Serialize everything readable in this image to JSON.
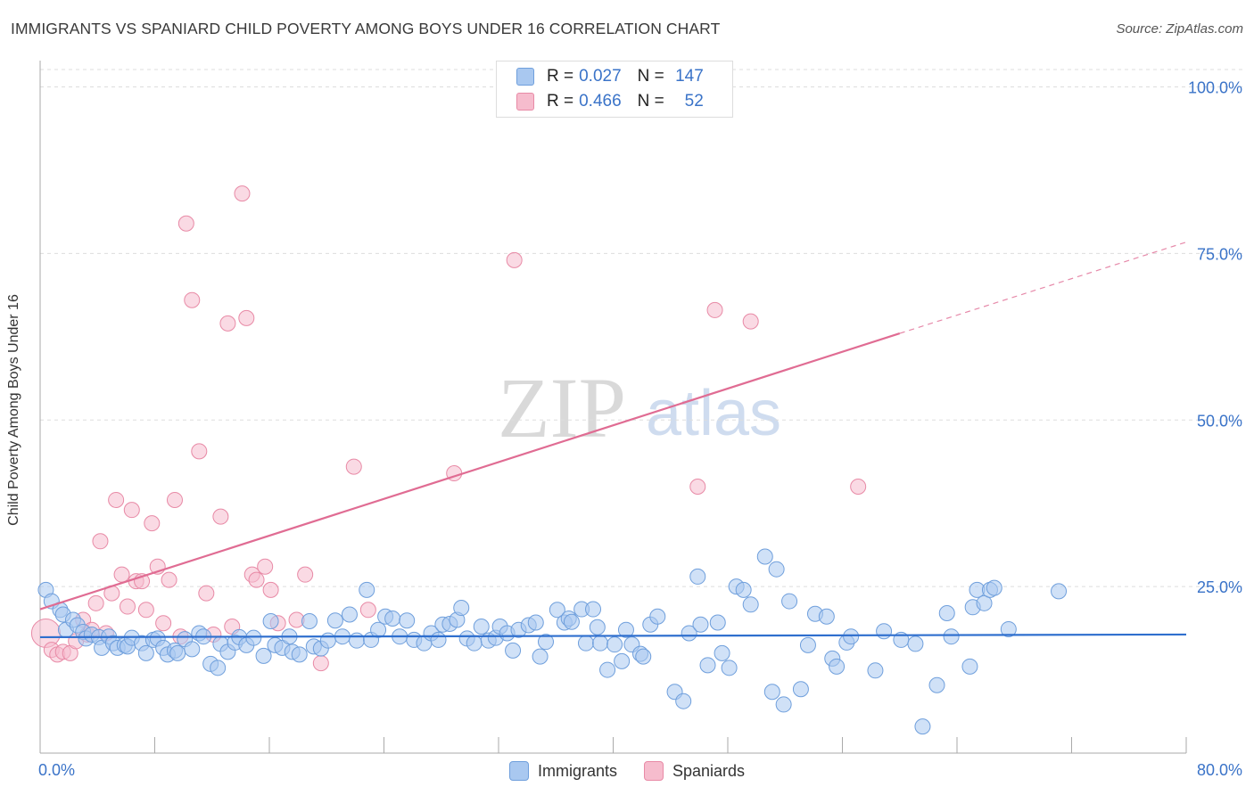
{
  "header": {
    "title": "IMMIGRANTS VS SPANIARD CHILD POVERTY AMONG BOYS UNDER 16 CORRELATION CHART",
    "source": "Source: ZipAtlas.com"
  },
  "watermark": {
    "zip": "ZIP",
    "atlas": "atlas"
  },
  "legend_top": {
    "rows": [
      {
        "r_label": "R = ",
        "r_value": "0.027",
        "n_label": "N = ",
        "n_value": "147"
      },
      {
        "r_label": "R = ",
        "r_value": "0.466",
        "n_label": "N = ",
        "n_value": "52"
      }
    ]
  },
  "legend_bottom": {
    "items": [
      {
        "label": "Immigrants"
      },
      {
        "label": "Spaniards"
      }
    ]
  },
  "colors": {
    "immigrants_fill": "#a9c8f0",
    "immigrants_stroke": "#6f9fdc",
    "immigrants_line": "#2f6fce",
    "spaniards_fill": "#f6bccd",
    "spaniards_stroke": "#e88aa6",
    "spaniards_line": "#e06c93",
    "axis_label": "#3a73c8",
    "grid": "#dddddd"
  },
  "chart_data": {
    "type": "scatter",
    "title": "IMMIGRANTS VS SPANIARD CHILD POVERTY AMONG BOYS UNDER 16 CORRELATION CHART",
    "xlabel": "",
    "ylabel": "Child Poverty Among Boys Under 16",
    "xlim": [
      0,
      80
    ],
    "ylim": [
      0,
      105
    ],
    "x_tick_labels": [
      "0.0%",
      "80.0%"
    ],
    "y_ticks": [
      25,
      50,
      75,
      100
    ],
    "y_tick_labels": [
      "25.0%",
      "50.0%",
      "75.0%",
      "100.0%"
    ],
    "grid": "horizontal dashed",
    "legend_position": "top-center",
    "series": [
      {
        "name": "Immigrants",
        "r": 0.027,
        "n": 147,
        "trend": {
          "x": [
            0,
            80
          ],
          "y": [
            17.4,
            17.8
          ]
        },
        "points": [
          [
            0.4,
            24.5
          ],
          [
            0.8,
            22.8
          ],
          [
            1.4,
            21.5
          ],
          [
            1.6,
            20.8
          ],
          [
            1.8,
            18.5
          ],
          [
            2.3,
            20.0
          ],
          [
            2.6,
            19.2
          ],
          [
            3.0,
            18.2
          ],
          [
            3.2,
            17.2
          ],
          [
            3.6,
            17.8
          ],
          [
            4.1,
            17.4
          ],
          [
            4.3,
            15.8
          ],
          [
            4.8,
            17.5
          ],
          [
            5.1,
            16.5
          ],
          [
            5.4,
            15.8
          ],
          [
            5.9,
            16.2
          ],
          [
            6.1,
            16.0
          ],
          [
            6.4,
            17.3
          ],
          [
            7.1,
            16.5
          ],
          [
            7.4,
            15.0
          ],
          [
            7.9,
            17.0
          ],
          [
            8.2,
            17.2
          ],
          [
            8.6,
            15.8
          ],
          [
            8.9,
            14.8
          ],
          [
            9.4,
            15.4
          ],
          [
            9.6,
            15.0
          ],
          [
            10.1,
            17.1
          ],
          [
            10.6,
            15.6
          ],
          [
            11.1,
            18.0
          ],
          [
            11.4,
            17.5
          ],
          [
            11.9,
            13.4
          ],
          [
            12.4,
            12.8
          ],
          [
            12.6,
            16.4
          ],
          [
            13.1,
            15.2
          ],
          [
            13.6,
            16.6
          ],
          [
            13.9,
            17.4
          ],
          [
            14.4,
            16.2
          ],
          [
            14.9,
            17.3
          ],
          [
            15.6,
            14.6
          ],
          [
            16.1,
            19.8
          ],
          [
            16.4,
            16.2
          ],
          [
            16.9,
            15.8
          ],
          [
            17.4,
            17.5
          ],
          [
            17.6,
            15.2
          ],
          [
            18.1,
            14.8
          ],
          [
            18.8,
            19.8
          ],
          [
            19.1,
            16.0
          ],
          [
            19.6,
            15.7
          ],
          [
            20.1,
            16.9
          ],
          [
            20.6,
            19.9
          ],
          [
            21.1,
            17.5
          ],
          [
            21.6,
            20.8
          ],
          [
            22.1,
            16.9
          ],
          [
            22.8,
            24.5
          ],
          [
            23.1,
            17.0
          ],
          [
            23.6,
            18.5
          ],
          [
            24.1,
            20.5
          ],
          [
            24.6,
            20.2
          ],
          [
            25.1,
            17.5
          ],
          [
            25.6,
            19.9
          ],
          [
            26.1,
            17.0
          ],
          [
            26.8,
            16.5
          ],
          [
            27.3,
            18.0
          ],
          [
            27.8,
            17.0
          ],
          [
            28.1,
            19.3
          ],
          [
            28.6,
            19.4
          ],
          [
            29.1,
            20.0
          ],
          [
            29.4,
            21.8
          ],
          [
            29.8,
            17.2
          ],
          [
            30.3,
            16.5
          ],
          [
            30.8,
            19.0
          ],
          [
            31.3,
            16.9
          ],
          [
            31.8,
            17.3
          ],
          [
            32.1,
            19.0
          ],
          [
            32.6,
            18.0
          ],
          [
            33.0,
            15.4
          ],
          [
            33.4,
            18.5
          ],
          [
            34.1,
            19.2
          ],
          [
            34.6,
            19.6
          ],
          [
            34.9,
            14.5
          ],
          [
            35.3,
            16.7
          ],
          [
            36.1,
            21.5
          ],
          [
            36.6,
            19.6
          ],
          [
            36.9,
            20.2
          ],
          [
            37.1,
            19.7
          ],
          [
            37.8,
            21.6
          ],
          [
            38.1,
            16.5
          ],
          [
            38.6,
            21.6
          ],
          [
            38.9,
            18.9
          ],
          [
            39.1,
            16.5
          ],
          [
            39.6,
            12.5
          ],
          [
            40.1,
            16.3
          ],
          [
            40.6,
            13.8
          ],
          [
            40.9,
            18.5
          ],
          [
            41.3,
            16.3
          ],
          [
            41.9,
            14.9
          ],
          [
            42.1,
            14.5
          ],
          [
            42.6,
            19.3
          ],
          [
            43.1,
            20.5
          ],
          [
            44.3,
            9.2
          ],
          [
            44.9,
            7.8
          ],
          [
            45.3,
            18.0
          ],
          [
            45.9,
            26.5
          ],
          [
            46.1,
            19.3
          ],
          [
            46.6,
            13.2
          ],
          [
            47.3,
            19.6
          ],
          [
            47.6,
            15.0
          ],
          [
            48.1,
            12.8
          ],
          [
            48.6,
            25.0
          ],
          [
            49.1,
            24.5
          ],
          [
            49.6,
            22.3
          ],
          [
            50.6,
            29.5
          ],
          [
            51.1,
            9.2
          ],
          [
            51.4,
            27.6
          ],
          [
            51.9,
            7.3
          ],
          [
            52.3,
            22.8
          ],
          [
            53.1,
            9.6
          ],
          [
            53.6,
            16.2
          ],
          [
            54.1,
            20.9
          ],
          [
            54.9,
            20.5
          ],
          [
            55.3,
            14.2
          ],
          [
            55.6,
            13.0
          ],
          [
            56.3,
            16.6
          ],
          [
            56.6,
            17.5
          ],
          [
            58.3,
            12.4
          ],
          [
            58.9,
            18.3
          ],
          [
            60.1,
            17.0
          ],
          [
            61.1,
            16.4
          ],
          [
            61.6,
            4.0
          ],
          [
            62.6,
            10.2
          ],
          [
            63.3,
            21.0
          ],
          [
            63.6,
            17.5
          ],
          [
            64.9,
            13.0
          ],
          [
            65.1,
            21.9
          ],
          [
            65.4,
            24.5
          ],
          [
            65.9,
            22.5
          ],
          [
            66.3,
            24.5
          ],
          [
            66.6,
            24.8
          ],
          [
            67.6,
            18.6
          ],
          [
            71.1,
            24.3
          ]
        ]
      },
      {
        "name": "Spaniards",
        "r": 0.466,
        "n": 52,
        "trend": {
          "x": [
            0,
            60
          ],
          "y": [
            21.6,
            63.0
          ]
        },
        "trend_dashed": {
          "x": [
            60,
            80
          ],
          "y": [
            63.0,
            76.7
          ]
        },
        "points": [
          [
            0.4,
            18.0
          ],
          [
            0.8,
            15.5
          ],
          [
            1.2,
            14.8
          ],
          [
            1.6,
            15.2
          ],
          [
            2.1,
            15.0
          ],
          [
            2.5,
            16.8
          ],
          [
            3.0,
            20.0
          ],
          [
            3.3,
            17.8
          ],
          [
            3.6,
            18.5
          ],
          [
            3.9,
            22.5
          ],
          [
            4.2,
            31.8
          ],
          [
            4.6,
            18.0
          ],
          [
            5.0,
            24.0
          ],
          [
            5.3,
            38.0
          ],
          [
            5.7,
            26.8
          ],
          [
            6.1,
            22.0
          ],
          [
            6.4,
            36.5
          ],
          [
            6.7,
            25.8
          ],
          [
            7.1,
            25.8
          ],
          [
            7.4,
            21.5
          ],
          [
            7.8,
            34.5
          ],
          [
            8.2,
            28.0
          ],
          [
            8.6,
            19.5
          ],
          [
            9.0,
            26.0
          ],
          [
            9.4,
            38.0
          ],
          [
            9.8,
            17.5
          ],
          [
            10.2,
            79.5
          ],
          [
            10.6,
            68.0
          ],
          [
            11.1,
            45.3
          ],
          [
            11.6,
            24.0
          ],
          [
            12.1,
            17.8
          ],
          [
            12.6,
            35.5
          ],
          [
            13.1,
            64.5
          ],
          [
            13.4,
            19.0
          ],
          [
            14.1,
            84.0
          ],
          [
            14.4,
            65.3
          ],
          [
            14.8,
            26.8
          ],
          [
            15.1,
            26.0
          ],
          [
            15.7,
            28.0
          ],
          [
            16.1,
            24.5
          ],
          [
            16.6,
            19.5
          ],
          [
            17.9,
            20.0
          ],
          [
            18.5,
            26.8
          ],
          [
            19.6,
            13.5
          ],
          [
            21.9,
            43.0
          ],
          [
            22.9,
            21.5
          ],
          [
            28.9,
            42.0
          ],
          [
            33.1,
            74.0
          ],
          [
            45.9,
            40.0
          ],
          [
            47.1,
            66.5
          ],
          [
            49.6,
            64.8
          ],
          [
            57.1,
            40.0
          ]
        ]
      }
    ]
  }
}
